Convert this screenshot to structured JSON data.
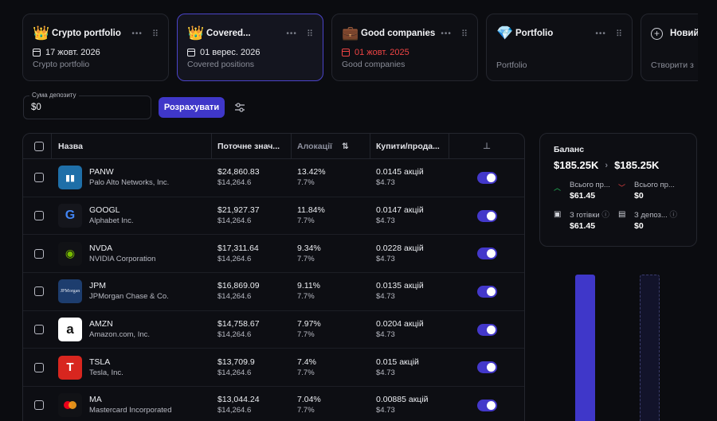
{
  "cards": [
    {
      "emoji": "👑",
      "title": "Crypto portfolio",
      "date": "17 жовт. 2026",
      "subtitle": "Crypto portfolio",
      "date_red": false
    },
    {
      "emoji": "👑",
      "title": "Covered...",
      "date": "01 верес. 2026",
      "subtitle": "Covered positions",
      "date_red": false,
      "active": true
    },
    {
      "emoji": "💼",
      "title": "Good companies",
      "date": "01 жовт. 2025",
      "subtitle": "Good companies",
      "date_red": true
    },
    {
      "emoji": "💎",
      "title": "Portfolio",
      "date": "",
      "subtitle": "Portfolio",
      "date_red": false
    },
    {
      "title": "Новий",
      "subtitle": "Створити з"
    }
  ],
  "deposit": {
    "label": "Сума депозиту",
    "value": "$0"
  },
  "calc_button": "Розрахувати",
  "table": {
    "headers": {
      "name": "Назва",
      "value": "Поточне знач...",
      "alloc": "Алокації",
      "buy": "Купити/прода..."
    },
    "rows": [
      {
        "ticker": "PANW",
        "company": "Palo Alto Networks, Inc.",
        "value": "$24,860.83",
        "value2": "$14,264.6",
        "alloc": "13.42%",
        "alloc2": "7.7%",
        "buy": "0.0145 акцій",
        "buy2": "$4.73"
      },
      {
        "ticker": "GOOGL",
        "company": "Alphabet Inc.",
        "value": "$21,927.37",
        "value2": "$14,264.6",
        "alloc": "11.84%",
        "alloc2": "7.7%",
        "buy": "0.0147 акцій",
        "buy2": "$4.73"
      },
      {
        "ticker": "NVDA",
        "company": "NVIDIA Corporation",
        "value": "$17,311.64",
        "value2": "$14,264.6",
        "alloc": "9.34%",
        "alloc2": "7.7%",
        "buy": "0.0228 акцій",
        "buy2": "$4.73"
      },
      {
        "ticker": "JPM",
        "company": "JPMorgan Chase & Co.",
        "value": "$16,869.09",
        "value2": "$14,264.6",
        "alloc": "9.11%",
        "alloc2": "7.7%",
        "buy": "0.0135 акцій",
        "buy2": "$4.73"
      },
      {
        "ticker": "AMZN",
        "company": "Amazon.com, Inc.",
        "value": "$14,758.67",
        "value2": "$14,264.6",
        "alloc": "7.97%",
        "alloc2": "7.7%",
        "buy": "0.0204 акцій",
        "buy2": "$4.73"
      },
      {
        "ticker": "TSLA",
        "company": "Tesla, Inc.",
        "value": "$13,709.9",
        "value2": "$14,264.6",
        "alloc": "7.4%",
        "alloc2": "7.7%",
        "buy": "0.015 акцій",
        "buy2": "$4.73"
      },
      {
        "ticker": "MA",
        "company": "Mastercard Incorporated",
        "value": "$13,044.24",
        "value2": "$14,264.6",
        "alloc": "7.04%",
        "alloc2": "7.7%",
        "buy": "0.00885 акцій",
        "buy2": "$4.73"
      }
    ]
  },
  "balance": {
    "title": "Баланс",
    "from": "$185.25K",
    "to": "$185.25K",
    "items": [
      {
        "label": "Всього пр...",
        "value": "$61.45",
        "icon": "arrow-up-icon"
      },
      {
        "label": "Всього пр...",
        "value": "$0",
        "icon": "arrow-down-icon"
      },
      {
        "label": "З готівки",
        "value": "$61.45",
        "icon": "wallet-icon"
      },
      {
        "label": "З депоз...",
        "value": "$0",
        "icon": "deposit-icon"
      }
    ]
  },
  "colors": {
    "accent": "#3f37c9",
    "background": "#0b0c10",
    "red": "#ef4444",
    "green": "#22c55e"
  }
}
